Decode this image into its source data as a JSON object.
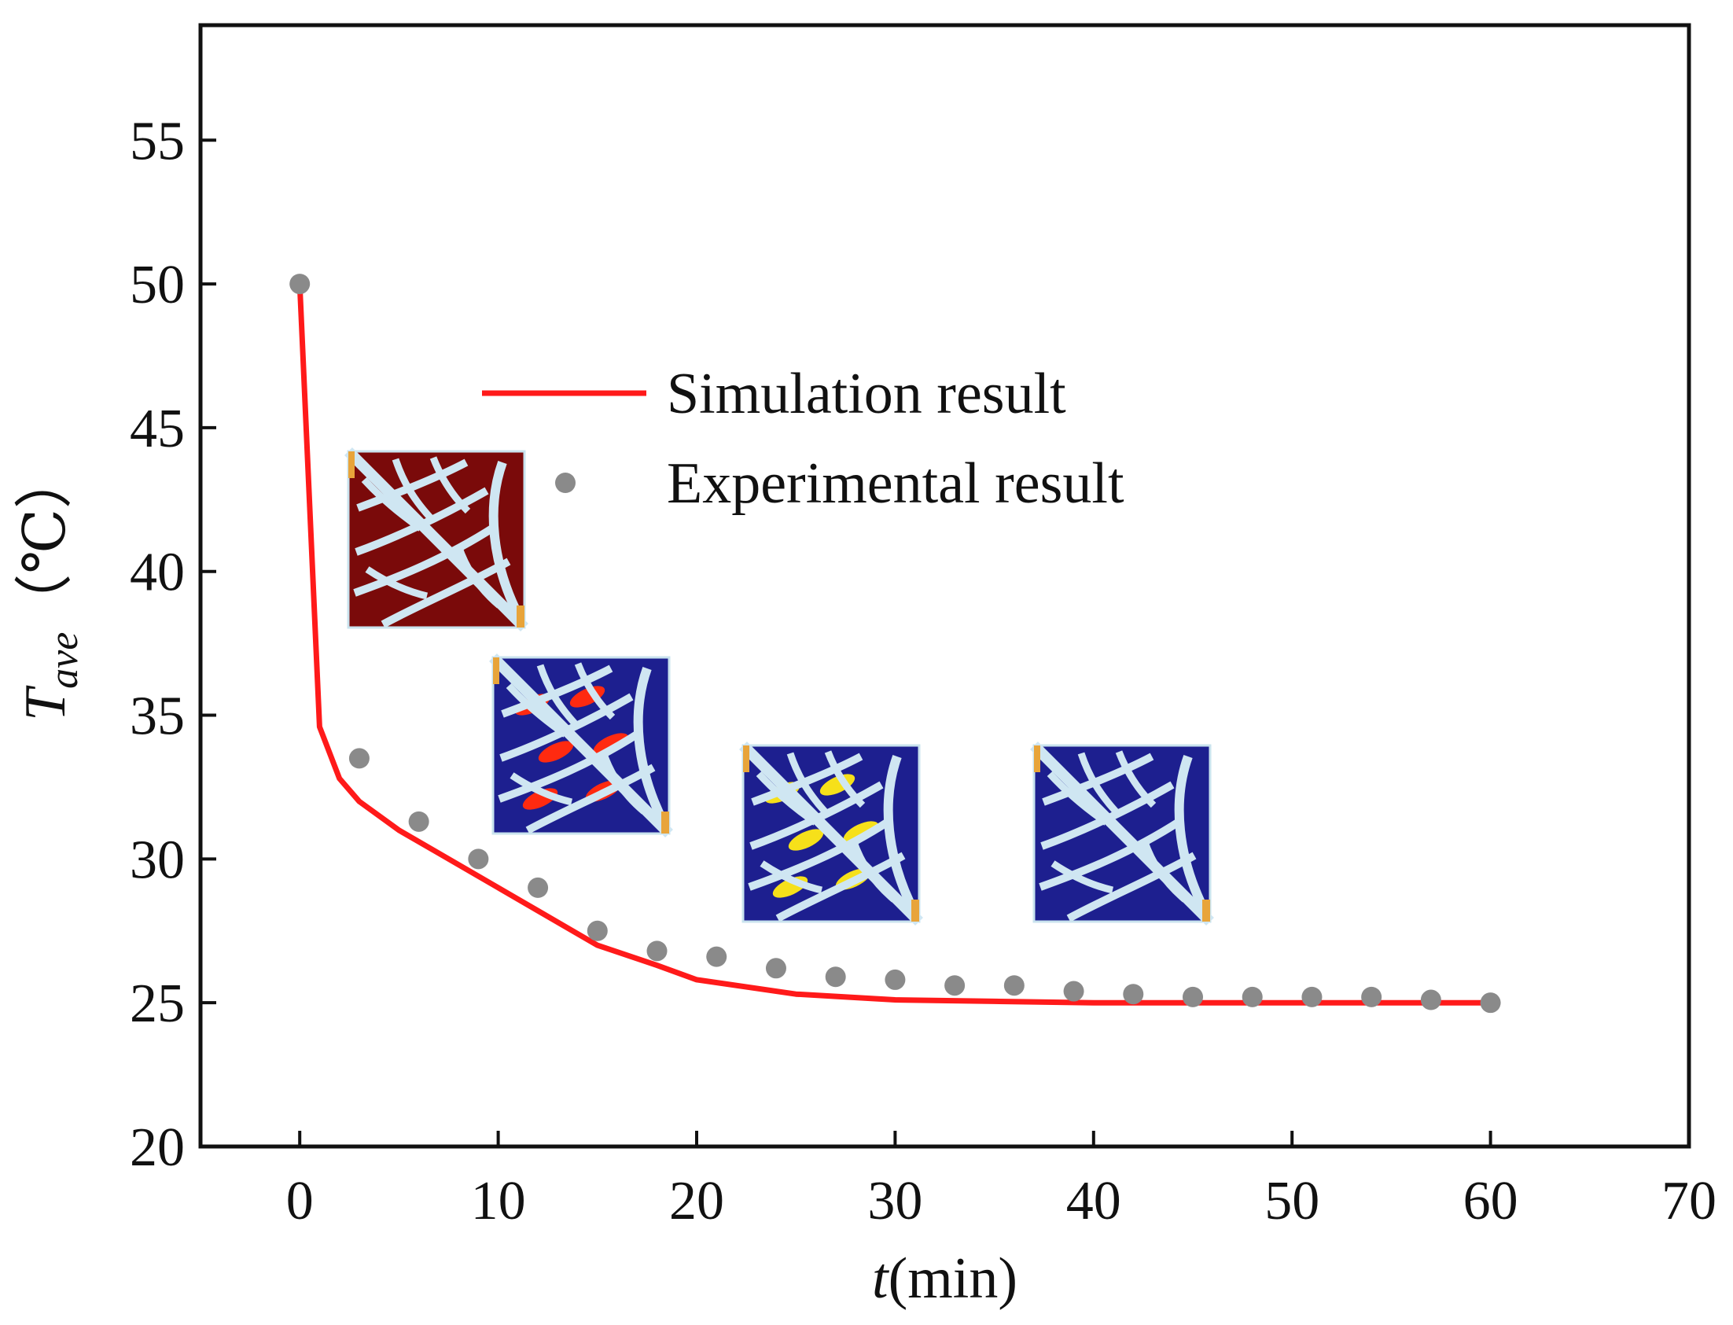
{
  "chart_data": {
    "type": "line",
    "xlabel": {
      "italic": "t",
      "rest": "(min)"
    },
    "ylabel": {
      "main": "T",
      "subscript": "ave",
      "unit": "（℃）"
    },
    "xlim": [
      -5,
      70
    ],
    "ylim": [
      20,
      59
    ],
    "xticks": [
      0,
      10,
      20,
      30,
      40,
      50,
      60,
      70
    ],
    "yticks": [
      20,
      25,
      30,
      35,
      40,
      45,
      50,
      55
    ],
    "grid": false,
    "legend_position": "upper-center",
    "series": [
      {
        "name": "Simulation result",
        "style": "line",
        "color": "#ff1a1a",
        "x": [
          0,
          1,
          2,
          3,
          5,
          7,
          10,
          12,
          15,
          18,
          20,
          25,
          30,
          35,
          40,
          45,
          50,
          55,
          60
        ],
        "y": [
          50,
          34.6,
          32.8,
          32.0,
          31.0,
          30.2,
          29.0,
          28.2,
          27.0,
          26.3,
          25.8,
          25.3,
          25.1,
          25.05,
          25.0,
          25.0,
          25.0,
          25.0,
          25.0
        ]
      },
      {
        "name": "Experimental result",
        "style": "scatter",
        "color": "#8a8a8a",
        "x": [
          0,
          3,
          6,
          9,
          12,
          15,
          18,
          21,
          24,
          27,
          30,
          33,
          36,
          39,
          42,
          45,
          48,
          51,
          54,
          57,
          60
        ],
        "y": [
          50,
          33.5,
          31.3,
          30.0,
          29.0,
          27.5,
          26.8,
          26.6,
          26.2,
          25.9,
          25.8,
          25.6,
          25.6,
          25.4,
          25.3,
          25.2,
          25.2,
          25.2,
          25.2,
          25.1,
          25.0
        ]
      }
    ],
    "insets": [
      {
        "name": "temperature-field-inset-1",
        "state": "hot"
      },
      {
        "name": "temperature-field-inset-2",
        "state": "mid-hot"
      },
      {
        "name": "temperature-field-inset-3",
        "state": "mid-cool"
      },
      {
        "name": "temperature-field-inset-4",
        "state": "cool"
      }
    ]
  }
}
